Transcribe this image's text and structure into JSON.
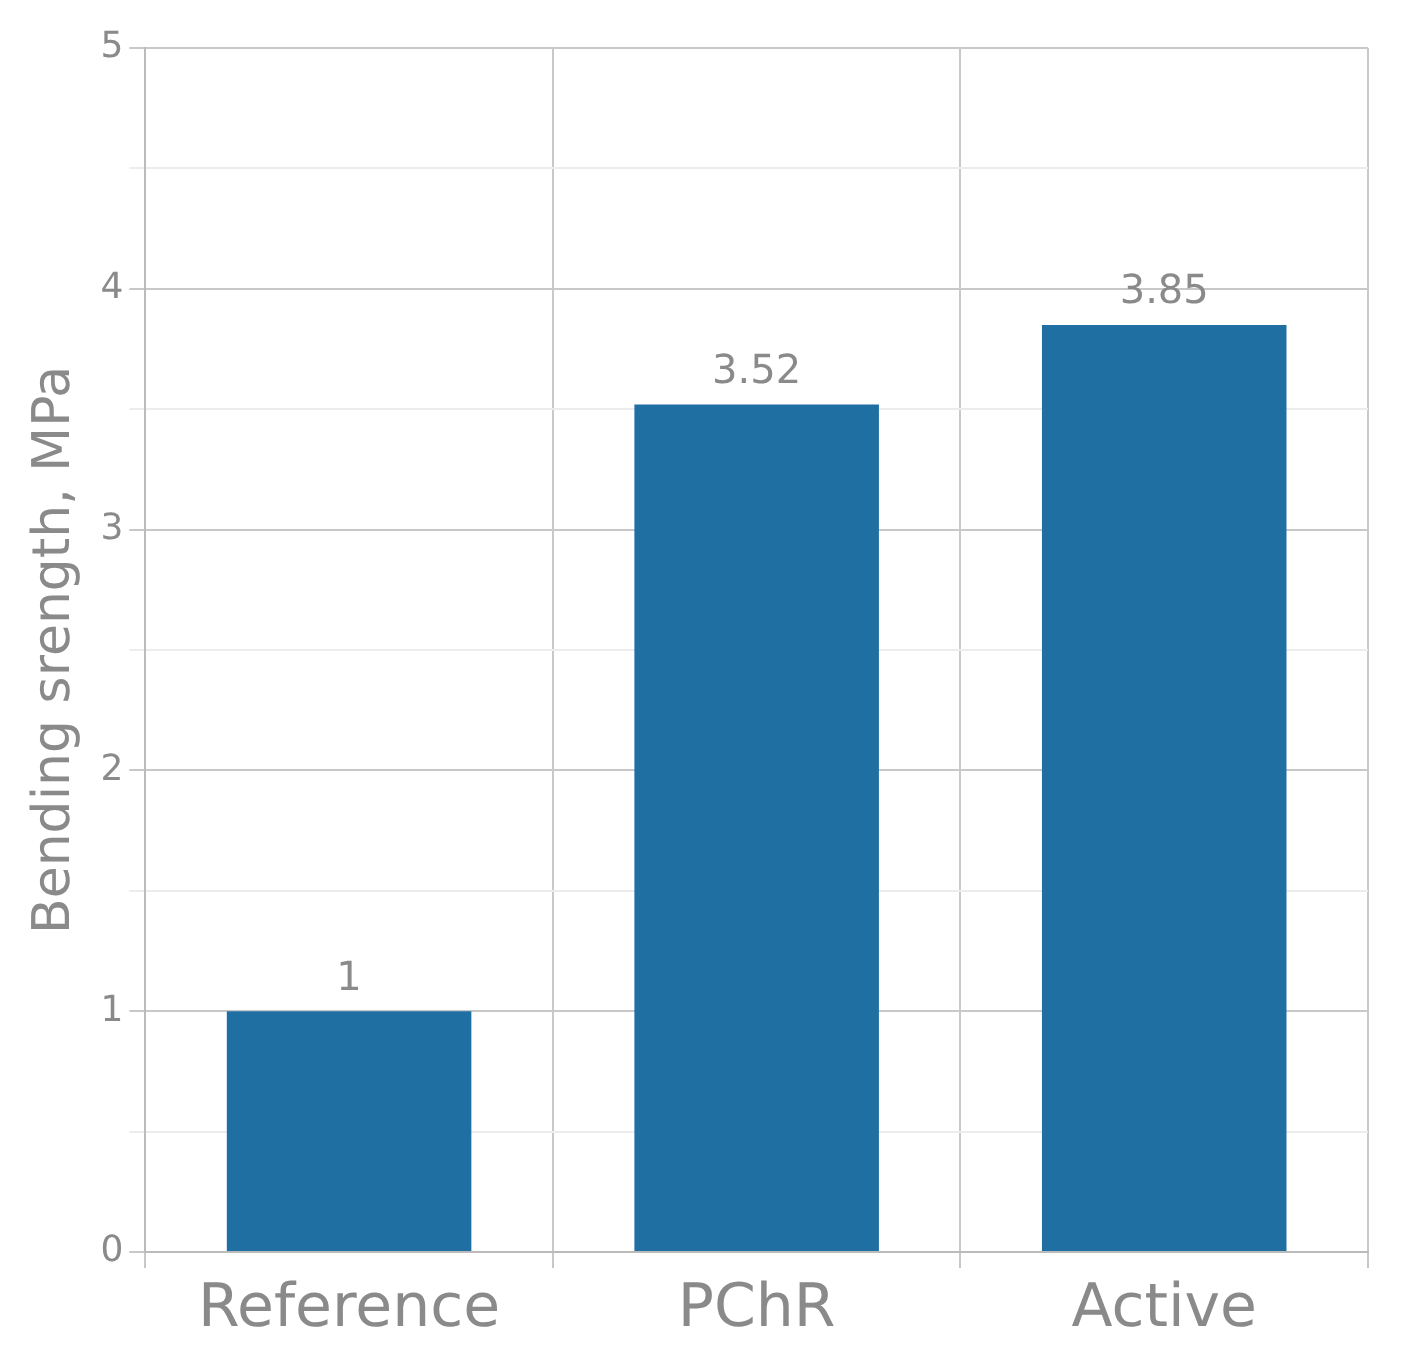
{
  "chart_data": {
    "type": "bar",
    "ylabel": "Bending srength, MPa",
    "categories": [
      "Reference",
      "PChR",
      "Active"
    ],
    "values": [
      1,
      3.52,
      3.85
    ],
    "color": "#1f6fa3",
    "ylim": [
      0,
      5
    ],
    "yticks": [
      0,
      {
        "value": 0.5,
        "label": null
      },
      1,
      {
        "value": 1.5,
        "label": null
      },
      2,
      {
        "value": 2.5,
        "label": null
      },
      3,
      {
        "value": 3.5,
        "label": null
      },
      4,
      {
        "value": 4.5,
        "label": null
      },
      5
    ],
    "grid": true,
    "data_labels": true
  }
}
